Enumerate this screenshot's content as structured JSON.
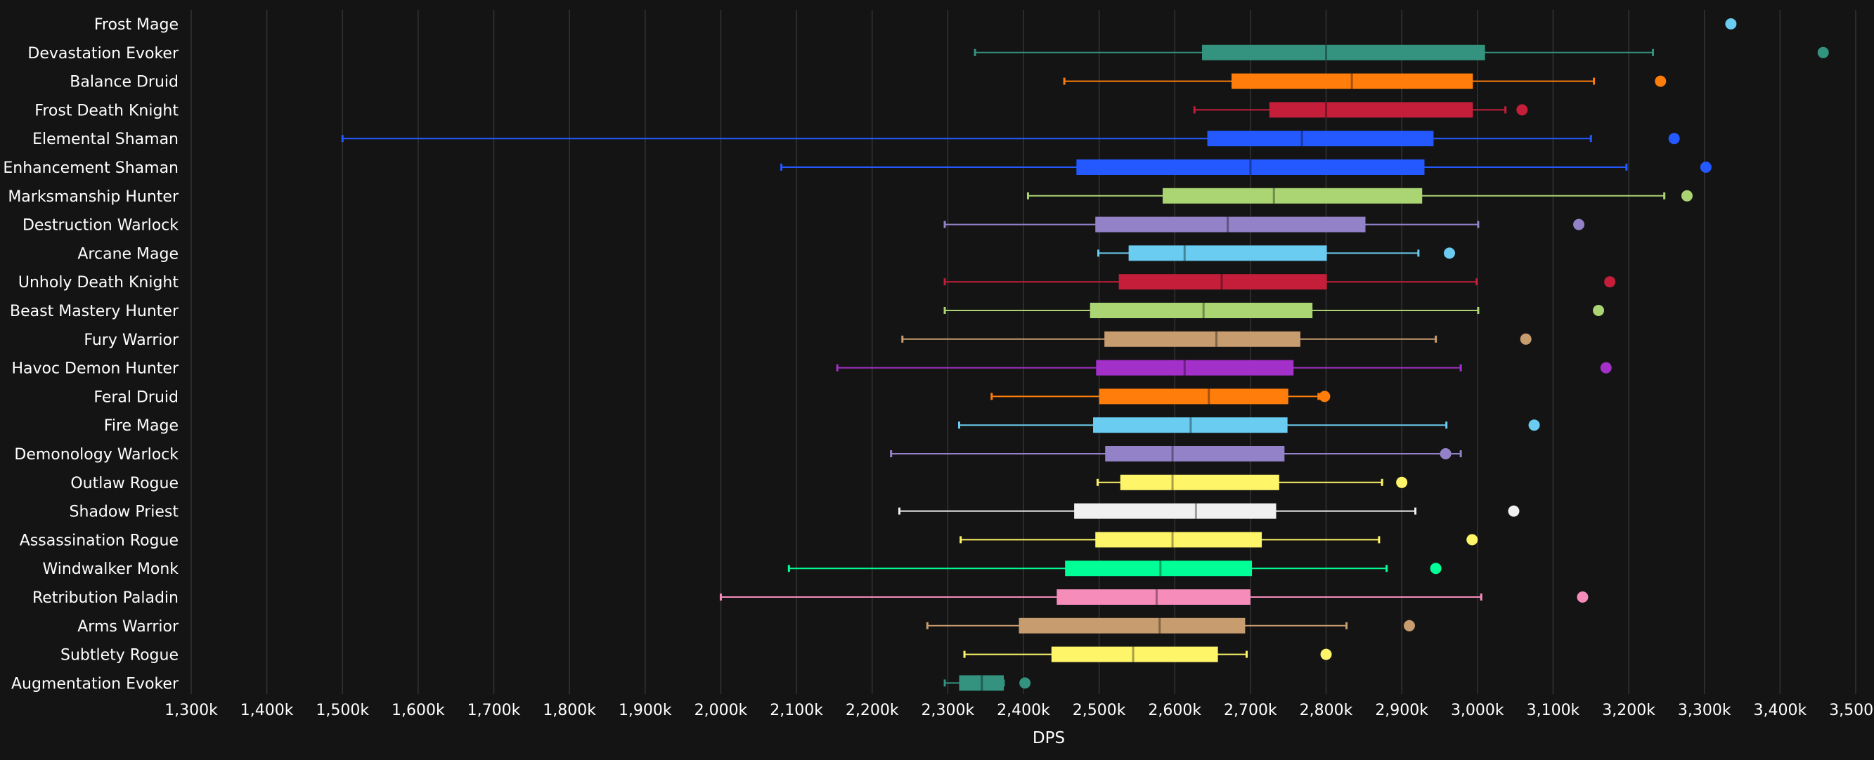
{
  "chart_data": {
    "type": "boxplot",
    "xlabel": "DPS",
    "xlim": [
      1300,
      3500
    ],
    "x_ticks": [
      "1,300k",
      "1,400k",
      "1,500k",
      "1,600k",
      "1,700k",
      "1,800k",
      "1,900k",
      "2,000k",
      "2,100k",
      "2,200k",
      "2,300k",
      "2,400k",
      "2,500k",
      "2,600k",
      "2,700k",
      "2,800k",
      "2,900k",
      "3,000k",
      "3,100k",
      "3,200k",
      "3,300k",
      "3,400k",
      "3,500k"
    ],
    "tick_values": [
      1300,
      1400,
      1500,
      1600,
      1700,
      1800,
      1900,
      2000,
      2100,
      2200,
      2300,
      2400,
      2500,
      2600,
      2700,
      2800,
      2900,
      3000,
      3100,
      3200,
      3300,
      3400,
      3500
    ],
    "grid": true,
    "unit": "k",
    "categories": [
      "Frost Mage",
      "Devastation Evoker",
      "Balance Druid",
      "Frost Death Knight",
      "Elemental Shaman",
      "Enhancement Shaman",
      "Marksmanship Hunter",
      "Destruction Warlock",
      "Arcane Mage",
      "Unholy Death Knight",
      "Beast Mastery Hunter",
      "Fury Warrior",
      "Havoc Demon Hunter",
      "Feral Druid",
      "Fire Mage",
      "Demonology Warlock",
      "Outlaw Rogue",
      "Shadow Priest",
      "Assassination Rogue",
      "Windwalker Monk",
      "Retribution Paladin",
      "Arms Warrior",
      "Subtlety Rogue",
      "Augmentation Evoker"
    ],
    "series": [
      {
        "name": "Frost Mage",
        "color": "#69ccf0",
        "outlier": 3335
      },
      {
        "name": "Devastation Evoker",
        "color": "#33937f",
        "min": 2336,
        "q1": 2636,
        "median": 2800,
        "q3": 3010,
        "max": 3232,
        "outlier": 3457
      },
      {
        "name": "Balance Druid",
        "color": "#ff7d0a",
        "min": 2454,
        "q1": 2675,
        "median": 2834,
        "q3": 2994,
        "max": 3154,
        "outlier": 3242
      },
      {
        "name": "Frost Death Knight",
        "color": "#c41e3a",
        "min": 2626,
        "q1": 2725,
        "median": 2800,
        "q3": 2994,
        "max": 3037,
        "outlier": 3059
      },
      {
        "name": "Elemental Shaman",
        "color": "#2459ff",
        "min": 1500,
        "q1": 2643,
        "median": 2768,
        "q3": 2942,
        "max": 3150,
        "outlier": 3260
      },
      {
        "name": "Enhancement Shaman",
        "color": "#2459ff",
        "min": 2080,
        "q1": 2470,
        "median": 2700,
        "q3": 2930,
        "max": 3197,
        "outlier": 3302
      },
      {
        "name": "Marksmanship Hunter",
        "color": "#abd473",
        "min": 2406,
        "q1": 2584,
        "median": 2731,
        "q3": 2927,
        "max": 3247,
        "outlier": 3277
      },
      {
        "name": "Destruction Warlock",
        "color": "#9482c9",
        "min": 2296,
        "q1": 2495,
        "median": 2670,
        "q3": 2852,
        "max": 3001,
        "outlier": 3134
      },
      {
        "name": "Arcane Mage",
        "color": "#69ccf0",
        "min": 2499,
        "q1": 2539,
        "median": 2613,
        "q3": 2801,
        "max": 2922,
        "outlier": 2963
      },
      {
        "name": "Unholy Death Knight",
        "color": "#c41e3a",
        "min": 2296,
        "q1": 2526,
        "median": 2662,
        "q3": 2801,
        "max": 2999,
        "outlier": 3175
      },
      {
        "name": "Beast Mastery Hunter",
        "color": "#abd473",
        "min": 2296,
        "q1": 2488,
        "median": 2638,
        "q3": 2782,
        "max": 3001,
        "outlier": 3160
      },
      {
        "name": "Fury Warrior",
        "color": "#c79c6e",
        "min": 2240,
        "q1": 2507,
        "median": 2655,
        "q3": 2766,
        "max": 2945,
        "outlier": 3064
      },
      {
        "name": "Havoc Demon Hunter",
        "color": "#a330c9",
        "min": 2154,
        "q1": 2496,
        "median": 2613,
        "q3": 2757,
        "max": 2978,
        "outlier": 3170
      },
      {
        "name": "Feral Druid",
        "color": "#ff7d0a",
        "min": 2358,
        "q1": 2500,
        "median": 2645,
        "q3": 2750,
        "max": 2790,
        "outlier": 2798
      },
      {
        "name": "Fire Mage",
        "color": "#69ccf0",
        "min": 2315,
        "q1": 2492,
        "median": 2621,
        "q3": 2749,
        "max": 2959,
        "outlier": 3075
      },
      {
        "name": "Demonology Warlock",
        "color": "#9482c9",
        "min": 2225,
        "q1": 2508,
        "median": 2597,
        "q3": 2745,
        "max": 2978,
        "outlier": 2958
      },
      {
        "name": "Outlaw Rogue",
        "color": "#fff569",
        "min": 2498,
        "q1": 2528,
        "median": 2597,
        "q3": 2738,
        "max": 2874,
        "outlier": 2900
      },
      {
        "name": "Shadow Priest",
        "color": "#f0f0f0",
        "min": 2236,
        "q1": 2467,
        "median": 2628,
        "q3": 2734,
        "max": 2918,
        "outlier": 3048
      },
      {
        "name": "Assassination Rogue",
        "color": "#fff569",
        "min": 2317,
        "q1": 2495,
        "median": 2597,
        "q3": 2715,
        "max": 2870,
        "outlier": 2993
      },
      {
        "name": "Windwalker Monk",
        "color": "#00ff96",
        "min": 2090,
        "q1": 2455,
        "median": 2581,
        "q3": 2702,
        "max": 2880,
        "outlier": 2945
      },
      {
        "name": "Retribution Paladin",
        "color": "#f58cba",
        "min": 2000,
        "q1": 2444,
        "median": 2576,
        "q3": 2700,
        "max": 3005,
        "outlier": 3139
      },
      {
        "name": "Arms Warrior",
        "color": "#c79c6e",
        "min": 2273,
        "q1": 2394,
        "median": 2580,
        "q3": 2693,
        "max": 2827,
        "outlier": 2910
      },
      {
        "name": "Subtlety Rogue",
        "color": "#fff569",
        "min": 2322,
        "q1": 2437,
        "median": 2545,
        "q3": 2657,
        "max": 2695,
        "outlier": 2800
      },
      {
        "name": "Augmentation Evoker",
        "color": "#33937f",
        "min": 2296,
        "q1": 2315,
        "median": 2345,
        "q3": 2374,
        "max": 2374,
        "outlier": 2402
      }
    ]
  }
}
